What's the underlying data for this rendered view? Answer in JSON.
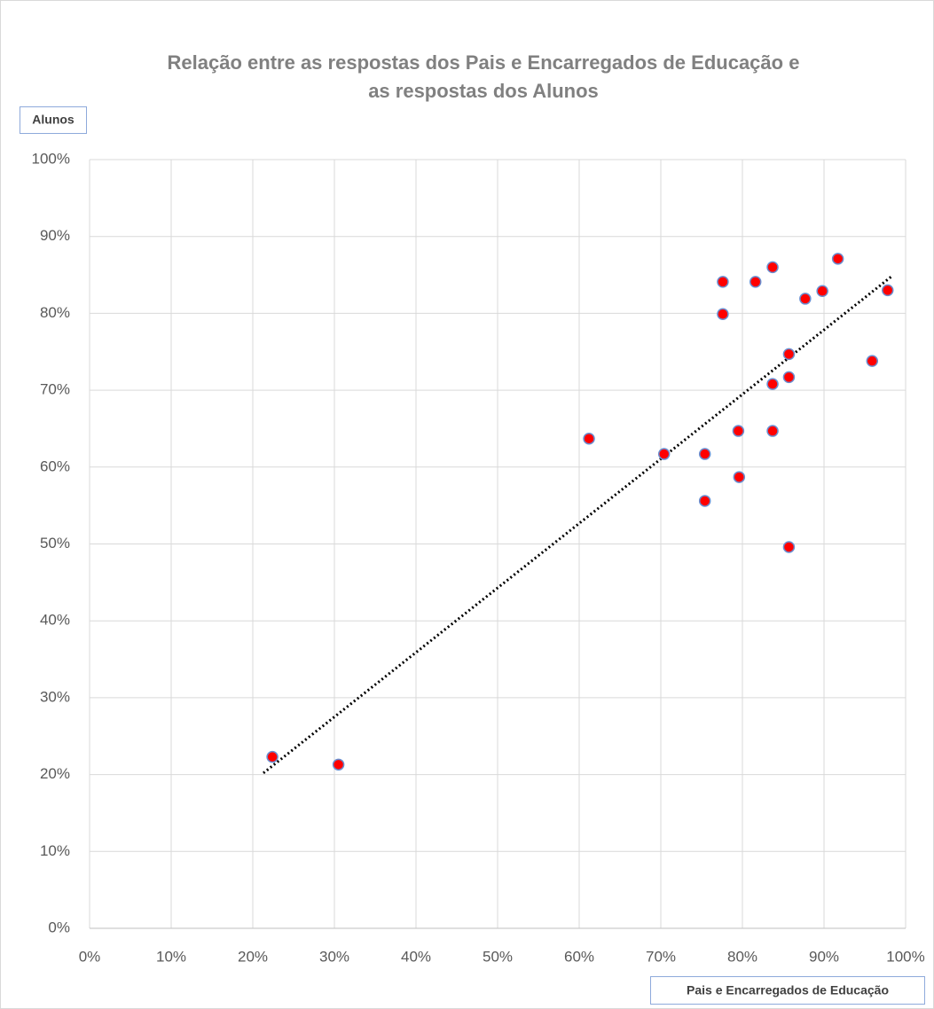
{
  "chart_data": {
    "type": "scatter",
    "title": [
      "Relação entre as respostas dos Pais e Encarregados de Educação e",
      "as respostas dos Alunos"
    ],
    "x_label": "Pais e Encarregados de Educação",
    "y_label": "Alunos",
    "x": [
      22.4,
      30.5,
      61.2,
      70.4,
      75.4,
      75.4,
      77.6,
      77.6,
      79.5,
      79.6,
      81.6,
      83.7,
      83.7,
      83.7,
      85.7,
      85.7,
      85.7,
      87.7,
      89.8,
      91.7,
      95.9,
      97.8
    ],
    "values": [
      22.3,
      21.3,
      63.7,
      61.7,
      61.7,
      55.6,
      79.9,
      84.1,
      64.7,
      58.7,
      84.1,
      86.0,
      70.8,
      64.7,
      74.7,
      71.7,
      49.6,
      81.9,
      82.9,
      87.1,
      73.8,
      83.0
    ],
    "color": "#ff0000",
    "trendline": {
      "x": [
        21.3,
        98.4
      ],
      "values": [
        20.2,
        84.9
      ],
      "color": "#000000"
    },
    "xlim": [
      0,
      100
    ],
    "ylim": [
      0,
      100
    ],
    "xticks": [
      {
        "value": 0,
        "label": "0%"
      },
      {
        "value": 10,
        "label": "10%"
      },
      {
        "value": 20,
        "label": "20%"
      },
      {
        "value": 30,
        "label": "30%"
      },
      {
        "value": 40,
        "label": "40%"
      },
      {
        "value": 50,
        "label": "50%"
      },
      {
        "value": 60,
        "label": "60%"
      },
      {
        "value": 70,
        "label": "70%"
      },
      {
        "value": 80,
        "label": "80%"
      },
      {
        "value": 90,
        "label": "90%"
      },
      {
        "value": 100,
        "label": "100%"
      }
    ],
    "yticks": [
      {
        "value": 0,
        "label": "0%"
      },
      {
        "value": 10,
        "label": "10%"
      },
      {
        "value": 20,
        "label": "20%"
      },
      {
        "value": 30,
        "label": "30%"
      },
      {
        "value": 40,
        "label": "40%"
      },
      {
        "value": 50,
        "label": "50%"
      },
      {
        "value": 60,
        "label": "60%"
      },
      {
        "value": 70,
        "label": "70%"
      },
      {
        "value": 80,
        "label": "80%"
      },
      {
        "value": 90,
        "label": "90%"
      },
      {
        "value": 100,
        "label": "100%"
      }
    ],
    "grid": true
  }
}
